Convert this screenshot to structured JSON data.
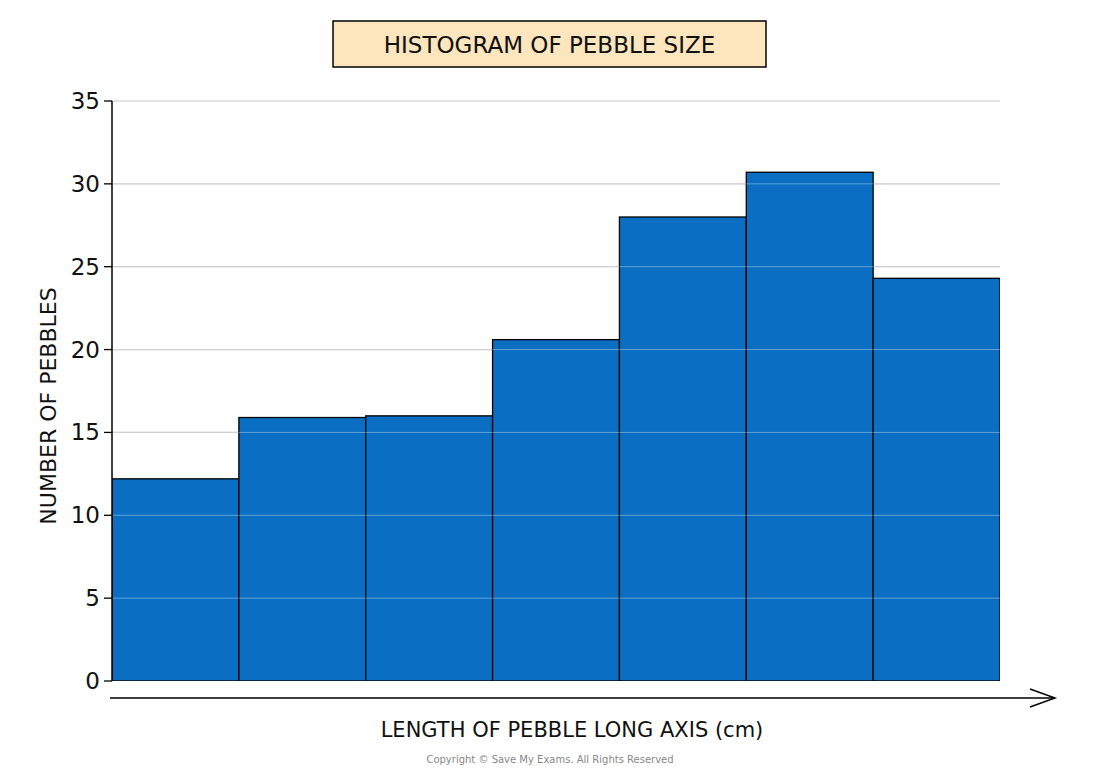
{
  "chart_data": {
    "type": "histogram",
    "title": "HISTOGRAM OF PEBBLE SIZE",
    "x_label": "LENGTH OF PEBBLE LONG AXIS (cm)",
    "y_label": "NUMBER OF PEBBLES",
    "bins": [
      0,
      1,
      2,
      3,
      4,
      5,
      6,
      7
    ],
    "values": [
      12.2,
      15.9,
      16.0,
      20.6,
      28.0,
      30.7,
      24.3
    ],
    "color": "#0a6fc2",
    "xlim": [
      0,
      7
    ],
    "ylim": [
      0,
      35
    ],
    "yticks": [
      0,
      5,
      10,
      15,
      20,
      25,
      30,
      35
    ],
    "grid": true,
    "tick_labels": "y",
    "annotations": [
      "Copyright © Save My Exams. All Rights Reserved"
    ]
  }
}
